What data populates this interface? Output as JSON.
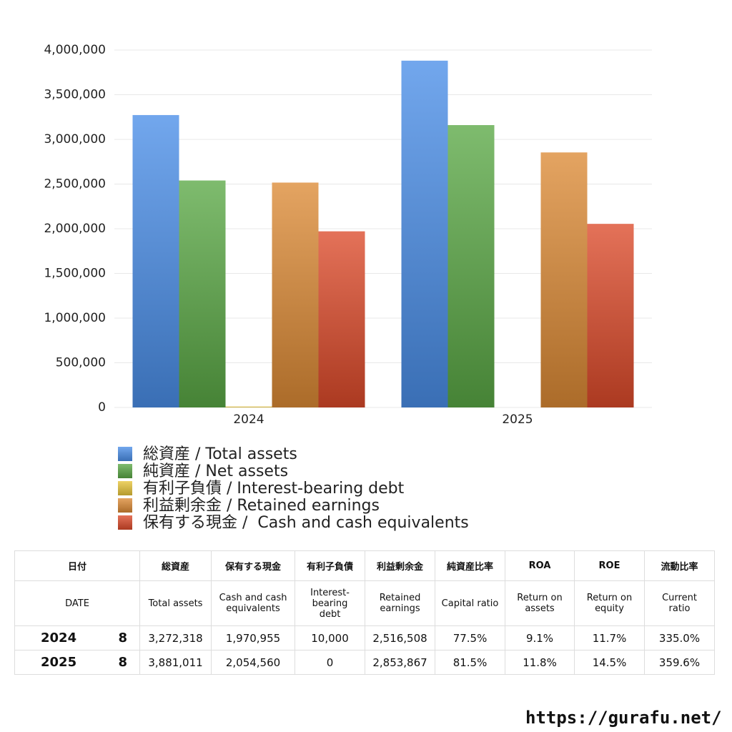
{
  "chart_data": {
    "type": "bar",
    "categories": [
      "2024",
      "2025"
    ],
    "series": [
      {
        "name": "総資産 / Total assets",
        "color": "#4a8ee8",
        "values": [
          3272318,
          3881011
        ]
      },
      {
        "name": "純資産 / Net assets",
        "color": "#5aa845",
        "values": [
          2540000,
          3160000
        ]
      },
      {
        "name": "有利子負債 / Interest-bearing debt",
        "color": "#e8c53a",
        "values": [
          10000,
          0
        ]
      },
      {
        "name": "利益剰余金 / Retained earnings",
        "color": "#dc8a35",
        "values": [
          2516508,
          2853867
        ]
      },
      {
        "name": "保有する現金 /  Cash and cash equivalents",
        "color": "#dc4a2a",
        "values": [
          1970955,
          2054560
        ]
      }
    ],
    "ylim": [
      0,
      4000000
    ],
    "yticks": [
      0,
      {
        "value": 500000,
        "label": "500,000"
      },
      {
        "value": 1000000,
        "label": "1,000,000"
      },
      {
        "value": 1500000,
        "label": "1,500,000"
      },
      {
        "value": 2000000,
        "label": "2,000,000"
      },
      {
        "value": 2500000,
        "label": "2,500,000"
      },
      {
        "value": 3000000,
        "label": "3,000,000"
      },
      {
        "value": 3500000,
        "label": "3,500,000"
      },
      {
        "value": 4000000,
        "label": "4,000,000"
      }
    ],
    "grid": true
  },
  "table": {
    "header_ja": [
      "日付",
      "総資産",
      "保有する現金",
      "有利子負債",
      "利益剰余金",
      "純資産比率",
      "ROA",
      "ROE",
      "流動比率"
    ],
    "header_en": [
      "DATE",
      "Total assets",
      "Cash and cash equivalents",
      "Interest-bearing debt",
      "Retained earnings",
      "Capital ratio",
      "Return on assets",
      "Return on equity",
      "Current ratio"
    ],
    "rows": [
      [
        "2024",
        "8",
        "3,272,318",
        "1,970,955",
        "10,000",
        "2,516,508",
        "77.5%",
        "9.1%",
        "11.7%",
        "335.0%"
      ],
      [
        "2025",
        "8",
        "3,881,011",
        "2,054,560",
        "0",
        "2,853,867",
        "81.5%",
        "11.8%",
        "14.5%",
        "359.6%"
      ]
    ]
  },
  "footer": "https://gurafu.net/"
}
